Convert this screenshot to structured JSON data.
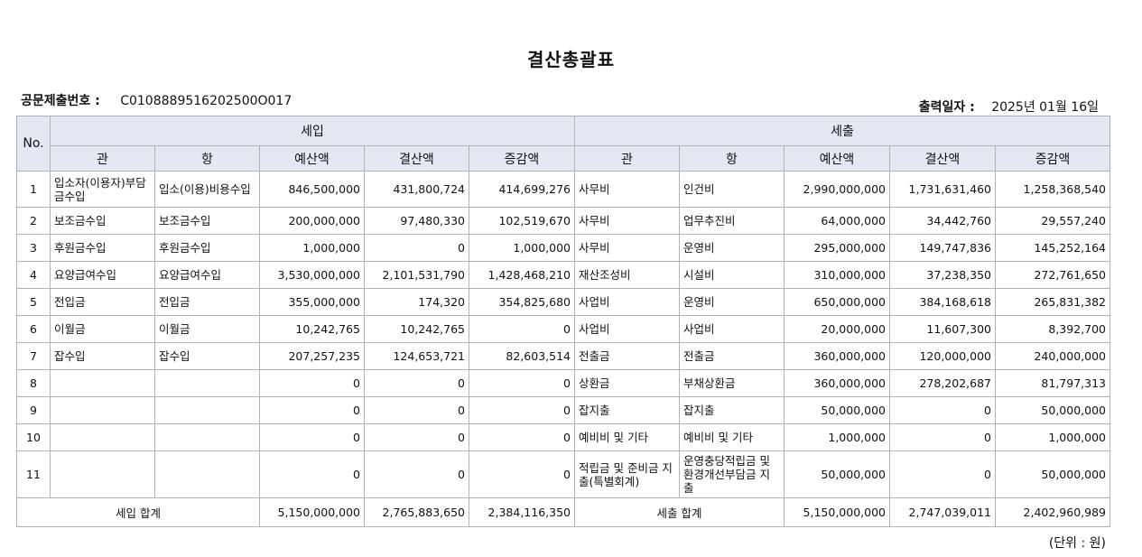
{
  "title": "결산총괄표",
  "doc_number": {
    "label": "공문제출번호 :",
    "value": "C0108889516202500O017"
  },
  "print_date": {
    "label": "출력일자 :",
    "value": "2025년 01월 16일"
  },
  "headers": {
    "no": "No.",
    "income": "세입",
    "expense": "세출",
    "cols": [
      "관",
      "항",
      "예산액",
      "결산액",
      "증감액",
      "관",
      "항",
      "예산액",
      "결산액",
      "증감액"
    ]
  },
  "rows": [
    [
      "1",
      "입소자(이용자)부담금수입",
      "입소(이용)비용수입",
      "846,500,000",
      "431,800,724",
      "414,699,276",
      "사무비",
      "인건비",
      "2,990,000,000",
      "1,731,631,460",
      "1,258,368,540"
    ],
    [
      "2",
      "보조금수입",
      "보조금수입",
      "200,000,000",
      "97,480,330",
      "102,519,670",
      "사무비",
      "업무추진비",
      "64,000,000",
      "34,442,760",
      "29,557,240"
    ],
    [
      "3",
      "후원금수입",
      "후원금수입",
      "1,000,000",
      "0",
      "1,000,000",
      "사무비",
      "운영비",
      "295,000,000",
      "149,747,836",
      "145,252,164"
    ],
    [
      "4",
      "요양급여수입",
      "요양급여수입",
      "3,530,000,000",
      "2,101,531,790",
      "1,428,468,210",
      "재산조성비",
      "시설비",
      "310,000,000",
      "37,238,350",
      "272,761,650"
    ],
    [
      "5",
      "전입금",
      "전입금",
      "355,000,000",
      "174,320",
      "354,825,680",
      "사업비",
      "운영비",
      "650,000,000",
      "384,168,618",
      "265,831,382"
    ],
    [
      "6",
      "이월금",
      "이월금",
      "10,242,765",
      "10,242,765",
      "0",
      "사업비",
      "사업비",
      "20,000,000",
      "11,607,300",
      "8,392,700"
    ],
    [
      "7",
      "잡수입",
      "잡수입",
      "207,257,235",
      "124,653,721",
      "82,603,514",
      "전출금",
      "전출금",
      "360,000,000",
      "120,000,000",
      "240,000,000"
    ],
    [
      "8",
      "",
      "",
      "0",
      "0",
      "0",
      "상환금",
      "부채상환금",
      "360,000,000",
      "278,202,687",
      "81,797,313"
    ],
    [
      "9",
      "",
      "",
      "0",
      "0",
      "0",
      "잡지출",
      "잡지출",
      "50,000,000",
      "0",
      "50,000,000"
    ],
    [
      "10",
      "",
      "",
      "0",
      "0",
      "0",
      "예비비 및 기타",
      "예비비 및 기타",
      "1,000,000",
      "0",
      "1,000,000"
    ],
    [
      "11",
      "",
      "",
      "0",
      "0",
      "0",
      "적립금 및 준비금 지출(특별회계)",
      "운영충당적립금 및 환경개선부담금 지출",
      "50,000,000",
      "0",
      "50,000,000"
    ]
  ],
  "totals": {
    "income_label": "세입 합계",
    "income": [
      "5,150,000,000",
      "2,765,883,650",
      "2,384,116,350"
    ],
    "expense_label": "세출 합계",
    "expense": [
      "5,150,000,000",
      "2,747,039,011",
      "2,402,960,989"
    ]
  },
  "unit": "(단위 : 원)"
}
